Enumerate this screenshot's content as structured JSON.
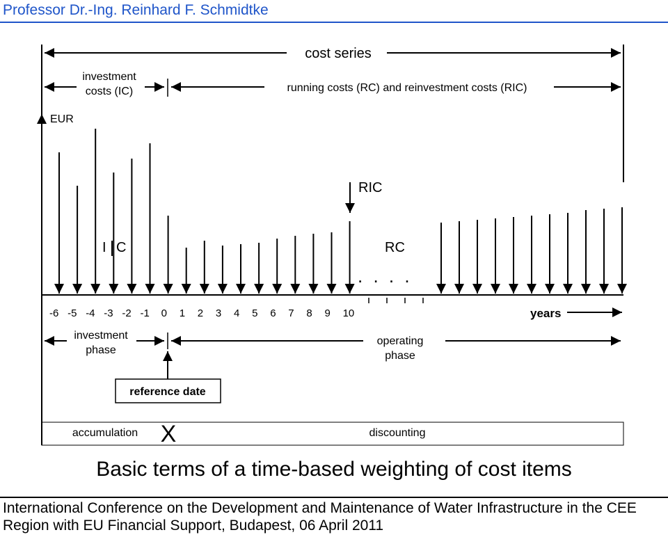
{
  "header": {
    "presenter": "Professor Dr.-Ing. Reinhard F. Schmidtke"
  },
  "diagram": {
    "cost_series_label": "cost series",
    "investment_costs_label_line1": "investment",
    "investment_costs_label_line2": "costs (IC)",
    "running_costs_label": "running costs (RC) and reinvestment costs (RIC)",
    "y_axis_label": "EUR",
    "ric_label": "RIC",
    "ic_label_i": "I",
    "ic_label_c": "C",
    "rc_label": "RC",
    "ellipsis": ". . . .",
    "year_ticks": [
      "-6",
      "-5",
      "-4",
      "-3",
      "-2",
      "-1",
      "0",
      "1",
      "2",
      "3",
      "4",
      "5",
      "6",
      "7",
      "8",
      "9",
      "10"
    ],
    "years_label": "years",
    "investment_phase_line1": "investment",
    "investment_phase_line2": "phase",
    "operating_phase_line1": "operating",
    "operating_phase_line2": "phase",
    "reference_date_label": "reference date",
    "accumulation_label": "accumulation",
    "reference_marker": "X",
    "discounting_label": "discounting"
  },
  "title": "Basic terms of a time-based weighting of cost items",
  "footer": {
    "line1": "International Conference on the Development and Maintenance of Water Infrastructure in the CEE",
    "line2": "Region with EU Financial Support,  Budapest,  06 April 2011"
  }
}
